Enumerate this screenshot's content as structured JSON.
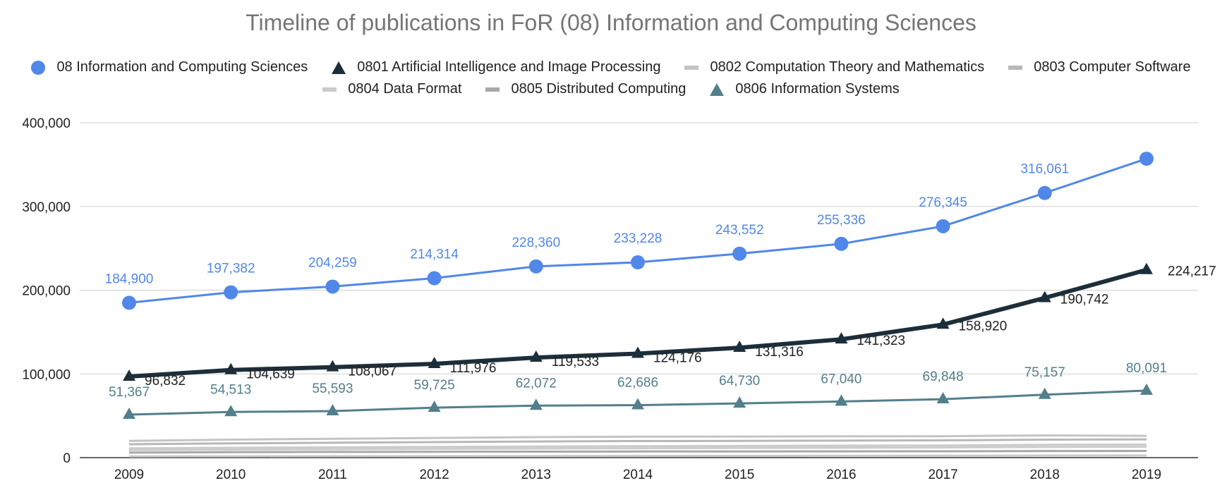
{
  "chart_data": {
    "type": "line",
    "title": "Timeline of publications in FoR (08) Information and Computing Sciences",
    "xlabel": "",
    "ylabel": "",
    "x": [
      2009,
      2010,
      2011,
      2012,
      2013,
      2014,
      2015,
      2016,
      2017,
      2018,
      2019
    ],
    "x_tick_labels": [
      "2009",
      "2010",
      "2011",
      "2012",
      "2013",
      "2014",
      "2015",
      "2016",
      "2017",
      "2018",
      "2019"
    ],
    "ylim": [
      0,
      400000
    ],
    "y_ticks": [
      0,
      100000,
      200000,
      300000,
      400000
    ],
    "y_tick_labels": [
      "0",
      "100,000",
      "200,000",
      "300,000",
      "400,000"
    ],
    "grid": true,
    "legend_position": "top",
    "series": [
      {
        "name": "08 Information and Computing Sciences",
        "color": "#5187e8",
        "marker": "circle",
        "line_width": "medium",
        "values": [
          184900,
          197382,
          204259,
          214314,
          228360,
          233228,
          243552,
          255336,
          276345,
          316061,
          357000
        ],
        "data_labels": [
          "184,900",
          "197,382",
          "204,259",
          "214,314",
          "228,360",
          "233,228",
          "243,552",
          "255,336",
          "276,345",
          "316,061",
          ""
        ]
      },
      {
        "name": "0801 Artificial Intelligence and Image Processing",
        "color": "#1c2e3a",
        "marker": "triangle",
        "line_width": "thick",
        "values": [
          96832,
          104639,
          108067,
          111976,
          119533,
          124176,
          131316,
          141323,
          158920,
          190742,
          224217
        ],
        "data_labels": [
          "96,832",
          "104,639",
          "108,067",
          "111,976",
          "119,533",
          "124,176",
          "131,316",
          "141,323",
          "158,920",
          "190,742",
          "224,217"
        ]
      },
      {
        "name": "0802 Computation Theory and Mathematics",
        "color": "#c4c4c4",
        "marker": "line",
        "line_width": "thin",
        "values": [
          20000,
          21500,
          22500,
          23500,
          24500,
          25000,
          25200,
          25400,
          25600,
          26500,
          26000
        ],
        "data_labels": []
      },
      {
        "name": "0803 Computer Software",
        "color": "#b8b8b8",
        "marker": "line",
        "line_width": "thin",
        "values": [
          16000,
          17000,
          17800,
          18500,
          19300,
          19800,
          20000,
          20300,
          20600,
          21500,
          21800
        ],
        "data_labels": []
      },
      {
        "name": "0804 Data Format",
        "color": "#c9c9c9",
        "marker": "line",
        "line_width": "thin",
        "values": [
          1500,
          1600,
          1700,
          1800,
          1900,
          2000,
          2100,
          2200,
          2300,
          2400,
          2500
        ],
        "data_labels": []
      },
      {
        "name": "0805 Distributed Computing",
        "color": "#a8a8a8",
        "marker": "line",
        "line_width": "thin",
        "values": [
          6000,
          6500,
          6800,
          7000,
          7200,
          7300,
          7400,
          7500,
          7600,
          7900,
          8000
        ],
        "data_labels": []
      },
      {
        "name": "0806 Information Systems",
        "color": "#537f8a",
        "marker": "triangle",
        "line_width": "medium",
        "values": [
          51367,
          54513,
          55593,
          59725,
          62072,
          62686,
          64730,
          67040,
          69848,
          75157,
          80091
        ],
        "data_labels": [
          "51,367",
          "54,513",
          "55,593",
          "59,725",
          "62,072",
          "62,686",
          "64,730",
          "67,040",
          "69,848",
          "75,157",
          "80,091"
        ]
      }
    ]
  },
  "extra_gray_lines": [
    [
      11000,
      11800,
      12300,
      12800,
      13300,
      13700,
      14000,
      14300,
      14600,
      15300,
      15700
    ],
    [
      9000,
      9600,
      10000,
      10400,
      10900,
      11200,
      11500,
      11800,
      12100,
      12700,
      13000
    ]
  ]
}
